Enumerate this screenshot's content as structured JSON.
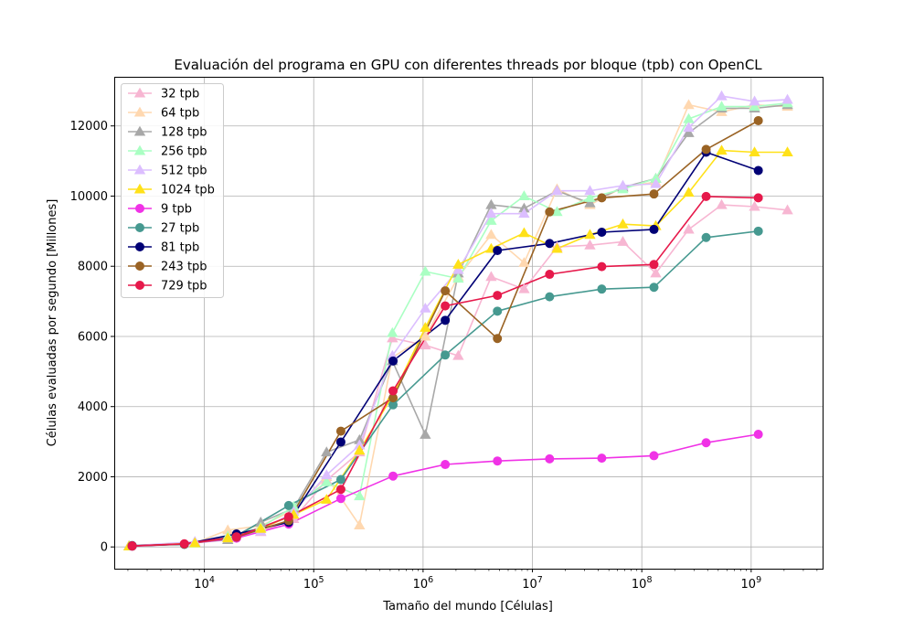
{
  "chart_data": {
    "type": "line",
    "title": "Evaluación del programa en GPU con diferentes threads por bloque (tpb) con OpenCL",
    "xlabel": "Tamaño del mundo [Células]",
    "ylabel": "Células evaluadas por segundo [Millones]",
    "xscale": "log",
    "xlim": [
      1500,
      4500000000
    ],
    "ylim": [
      -620,
      13400
    ],
    "x_tick_labels": [
      "10^4",
      "10^5",
      "10^6",
      "10^7",
      "10^8",
      "10^9"
    ],
    "y_ticks": [
      0,
      2000,
      4000,
      6000,
      8000,
      10000,
      12000
    ],
    "grid": true,
    "legend_position": "top-left",
    "series": [
      {
        "name": "32 tpb",
        "color": "#f7b6d2",
        "marker": "triangle",
        "x": [
          2048,
          8192,
          16384,
          32768,
          65536,
          131072,
          262144,
          524288,
          1048576,
          2097152,
          4194304,
          8388608,
          16777216,
          33554432,
          67108864,
          134217728,
          268435456,
          536870912,
          1073741824,
          2147483648
        ],
        "y": [
          20,
          130,
          280,
          430,
          800,
          1900,
          2700,
          5950,
          5750,
          5450,
          7700,
          7350,
          8550,
          8600,
          8700,
          7800,
          9050,
          9750,
          9700,
          9600
        ]
      },
      {
        "name": "64 tpb",
        "color": "#ffd8b0",
        "marker": "triangle",
        "x": [
          2048,
          8192,
          16384,
          32768,
          65536,
          131072,
          262144,
          524288,
          1048576,
          2097152,
          4194304,
          8388608,
          16777216,
          33554432,
          67108864,
          134217728,
          268435456,
          536870912,
          1073741824,
          2147483648
        ],
        "y": [
          25,
          110,
          480,
          600,
          1050,
          2000,
          620,
          5400,
          6000,
          7700,
          8900,
          8100,
          10200,
          9750,
          10250,
          10400,
          12600,
          12400,
          12600,
          12550
        ]
      },
      {
        "name": "128 tpb",
        "color": "#a8a8a8",
        "marker": "triangle",
        "x": [
          2048,
          8192,
          16384,
          32768,
          65536,
          131072,
          262144,
          524288,
          1048576,
          2097152,
          4194304,
          8388608,
          16777216,
          33554432,
          67108864,
          134217728,
          268435456,
          536870912,
          1073741824,
          2147483648
        ],
        "y": [
          30,
          120,
          200,
          700,
          1100,
          2700,
          3050,
          5300,
          3200,
          7800,
          9750,
          9650,
          10150,
          9800,
          10250,
          10500,
          11800,
          12500,
          12500,
          12600
        ]
      },
      {
        "name": "256 tpb",
        "color": "#aaffc3",
        "marker": "triangle",
        "x": [
          2048,
          8192,
          16384,
          32768,
          65536,
          131072,
          262144,
          524288,
          1048576,
          2097152,
          4194304,
          8388608,
          16777216,
          33554432,
          67108864,
          134217728,
          268435456,
          536870912,
          1073741824,
          2147483648
        ],
        "y": [
          20,
          100,
          300,
          550,
          1150,
          1850,
          1450,
          6100,
          7850,
          7650,
          9300,
          10000,
          9550,
          9950,
          10200,
          10500,
          12200,
          12550,
          12550,
          12650
        ]
      },
      {
        "name": "512 tpb",
        "color": "#dcbeff",
        "marker": "triangle",
        "x": [
          2048,
          8192,
          16384,
          32768,
          65536,
          131072,
          262144,
          524288,
          1048576,
          2097152,
          4194304,
          8388608,
          16777216,
          33554432,
          67108864,
          134217728,
          268435456,
          536870912,
          1073741824,
          2147483648
        ],
        "y": [
          30,
          150,
          250,
          450,
          1000,
          2050,
          2900,
          5450,
          6800,
          7900,
          9500,
          9500,
          10150,
          10150,
          10300,
          10350,
          11950,
          12850,
          12700,
          12750
        ]
      },
      {
        "name": "1024 tpb",
        "color": "#ffe119",
        "marker": "triangle",
        "x": [
          2048,
          8192,
          16384,
          32768,
          65536,
          131072,
          262144,
          524288,
          1048576,
          2097152,
          4194304,
          8388608,
          16777216,
          33554432,
          67108864,
          134217728,
          268435456,
          536870912,
          1073741824,
          2147483648
        ],
        "y": [
          20,
          110,
          250,
          520,
          920,
          1350,
          2750,
          4300,
          6250,
          8050,
          8500,
          8950,
          8500,
          8900,
          9200,
          9150,
          10100,
          11300,
          11250,
          11250
        ]
      },
      {
        "name": "9 tpb",
        "color": "#f032e6",
        "marker": "circle",
        "x": [
          2187,
          6561,
          19683,
          59049,
          177147,
          531441,
          1594323,
          4782969,
          14348907,
          43046721,
          129140163,
          387420489,
          1162261467
        ],
        "y": [
          20,
          80,
          250,
          650,
          1380,
          2020,
          2350,
          2450,
          2510,
          2530,
          2600,
          2970,
          3210
        ]
      },
      {
        "name": "27 tpb",
        "color": "#469990",
        "marker": "circle",
        "x": [
          2187,
          6561,
          19683,
          59049,
          177147,
          531441,
          1594323,
          4782969,
          14348907,
          43046721,
          129140163,
          387420489,
          1162261467
        ],
        "y": [
          40,
          70,
          310,
          1180,
          1920,
          4050,
          5470,
          6720,
          7130,
          7350,
          7400,
          8820,
          9000
        ]
      },
      {
        "name": "81 tpb",
        "color": "#000075",
        "marker": "circle",
        "x": [
          2187,
          6561,
          19683,
          59049,
          177147,
          531441,
          1594323,
          4782969,
          14348907,
          43046721,
          129140163,
          387420489,
          1162261467
        ],
        "y": [
          30,
          80,
          370,
          700,
          2990,
          5300,
          6460,
          8450,
          8650,
          8970,
          9050,
          11250,
          10730
        ]
      },
      {
        "name": "243 tpb",
        "color": "#9a6324",
        "marker": "circle",
        "x": [
          2187,
          6561,
          19683,
          59049,
          177147,
          531441,
          1594323,
          4782969,
          14348907,
          43046721,
          129140163,
          387420489,
          1162261467
        ],
        "y": [
          25,
          80,
          280,
          750,
          3300,
          4250,
          7300,
          5940,
          9550,
          9950,
          10060,
          11330,
          12150
        ]
      },
      {
        "name": "729 tpb",
        "color": "#e6194b",
        "marker": "circle",
        "x": [
          2187,
          6561,
          19683,
          59049,
          177147,
          531441,
          1594323,
          4782969,
          14348907,
          43046721,
          129140163,
          387420489,
          1162261467
        ],
        "y": [
          30,
          90,
          290,
          860,
          1640,
          4450,
          6870,
          7170,
          7770,
          7990,
          8050,
          9990,
          9950
        ]
      }
    ]
  }
}
